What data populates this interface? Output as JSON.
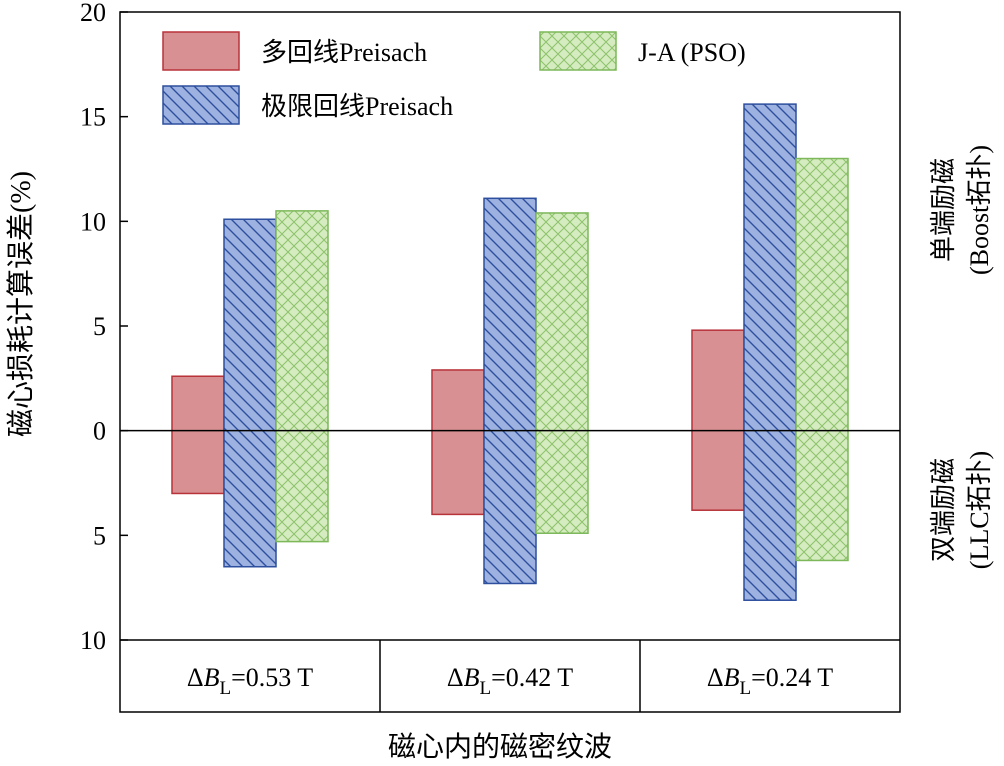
{
  "chart_data": {
    "type": "bar",
    "orientation": "vertical",
    "layout": "floating-bars-above-and-below-zero",
    "categories": [
      {
        "prefix": "ΔB",
        "subscript": "L",
        "suffix": "=0.53 T"
      },
      {
        "prefix": "ΔB",
        "subscript": "L",
        "suffix": "=0.42 T"
      },
      {
        "prefix": "ΔB",
        "subscript": "L",
        "suffix": "=0.24 T"
      }
    ],
    "series": [
      {
        "name": "多回线Preisach",
        "pattern": "solid",
        "fill": "#d89092",
        "stroke": "#b8323a",
        "positive": [
          2.6,
          2.9,
          4.8
        ],
        "negative": [
          3.0,
          4.0,
          3.8
        ]
      },
      {
        "name": "极限回线Preisach",
        "pattern": "diagonal",
        "fill": "#9db2e0",
        "stroke": "#2d4f9e",
        "positive": [
          10.1,
          11.1,
          15.6
        ],
        "negative": [
          6.5,
          7.3,
          8.1
        ]
      },
      {
        "name": "J-A (PSO)",
        "pattern": "crosshatch",
        "fill": "#d5ebc0",
        "stroke": "#7db85a",
        "positive": [
          10.5,
          10.4,
          13.0
        ],
        "negative": [
          5.3,
          4.9,
          6.2
        ]
      }
    ],
    "legend_order": [
      0,
      2,
      1
    ],
    "yticks": [
      20,
      15,
      10,
      5,
      0,
      -5,
      -10
    ],
    "ytick_labels": [
      "20",
      "15",
      "10",
      "5",
      "0",
      "5",
      "10"
    ],
    "ylim": [
      -10,
      20
    ],
    "ylabel": "磁心损耗计算误差(%)",
    "xlabel": "磁心内的磁密纹波",
    "right_labels": {
      "upper_line1": "单端励磁",
      "upper_line2": "(Boost拓扑)",
      "lower_line1": "双端励磁",
      "lower_line2": "(LLC拓扑)"
    },
    "legend_position": "top",
    "grid": false
  }
}
